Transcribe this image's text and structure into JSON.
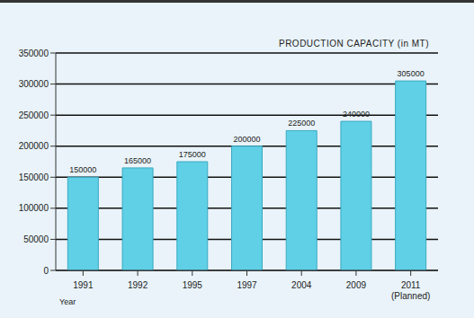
{
  "chart_data": {
    "type": "bar",
    "title": "PRODUCTION CAPACITY (in MT)",
    "x_label": "Year",
    "categories": [
      "1991",
      "1992",
      "1995",
      "1997",
      "2004",
      "2009",
      "2011 (Planned)"
    ],
    "values": [
      150000,
      165000,
      175000,
      200000,
      225000,
      240000,
      305000
    ],
    "color": "#5fd0e6",
    "ylim": [
      0,
      350000
    ],
    "yticks": [
      0,
      50000,
      100000,
      150000,
      200000,
      250000,
      300000,
      350000
    ],
    "grid": true,
    "data_labels": true
  }
}
